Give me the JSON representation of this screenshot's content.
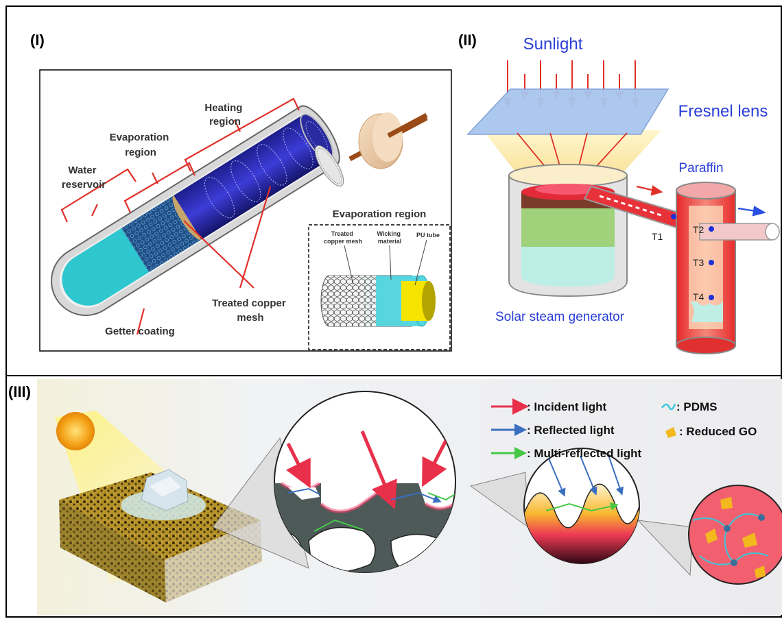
{
  "panel1": {
    "label": "(I)",
    "heating_region": [
      "Heating",
      "region"
    ],
    "evaporation_region": [
      "Evaporation",
      "region"
    ],
    "water_reservoir": [
      "Water",
      "reservoir"
    ],
    "treated_copper_mesh": [
      "Treated copper",
      "mesh"
    ],
    "getter_coating": "Getter coating",
    "inset": {
      "title": "Evaporation region",
      "treated_copper_mesh": [
        "Treated",
        "copper mesh"
      ],
      "wicking_material": [
        "Wicking",
        "material"
      ],
      "pu_tube": "PU tube"
    }
  },
  "panel2": {
    "label": "(II)",
    "sunlight": "Sunlight",
    "fresnel_lens": "Fresnel lens",
    "paraffin": "Paraffin",
    "solar_steam_generator": "Solar steam generator",
    "t1": "T1",
    "t2": "T2",
    "t3": "T3",
    "t4": "T4"
  },
  "panel3": {
    "label": "(III)",
    "legend": {
      "incident": ": Incident light",
      "reflected": ": Reflected light",
      "multi": ": Multi-reflected light",
      "pdms": ": PDMS",
      "rgo": ": Reduced GO"
    }
  },
  "colors": {
    "bracket": "#e0302a",
    "sunlight_text": "#2a3fd8",
    "incident": "#e8304a",
    "reflected": "#3a6fc0",
    "multi": "#46c846",
    "pdms": "#39c7d8",
    "rgo": "#f2b81e"
  }
}
